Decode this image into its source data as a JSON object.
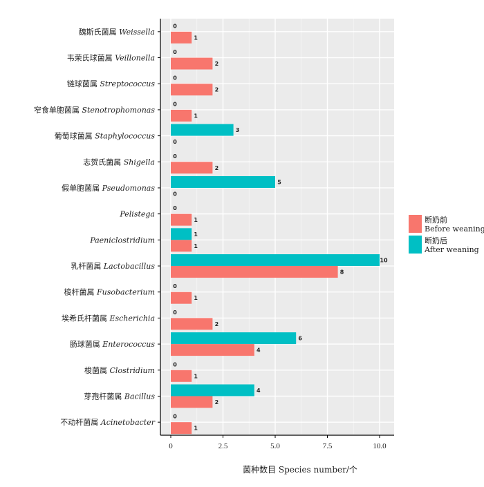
{
  "chart_data": {
    "type": "bar",
    "orientation": "horizontal",
    "xlabel": "菌种数目 Species number/个",
    "ylabel": "",
    "xlim": [
      0,
      10.5
    ],
    "x_ticks": [
      "0",
      "2.5",
      "5.0",
      "7.5",
      "10.0"
    ],
    "grid": true,
    "legend_position": "right",
    "categories": [
      {
        "cn": "魏斯氏菌属",
        "latin": "Weissella"
      },
      {
        "cn": "韦荣氏球菌属",
        "latin": "Veillonella"
      },
      {
        "cn": "链球菌属",
        "latin": "Streptococcus"
      },
      {
        "cn": "窄食单胞菌属",
        "latin": "Stenotrophomonas"
      },
      {
        "cn": "葡萄球菌属",
        "latin": "Staphylococcus"
      },
      {
        "cn": "志贺氏菌属",
        "latin": "Shigella"
      },
      {
        "cn": "假单胞菌属",
        "latin": "Pseudomonas"
      },
      {
        "cn": "",
        "latin": "Pelistega"
      },
      {
        "cn": "",
        "latin": "Paeniclostridium"
      },
      {
        "cn": "乳杆菌属",
        "latin": "Lactobacillus"
      },
      {
        "cn": "梭杆菌属",
        "latin": "Fusobacterium"
      },
      {
        "cn": "埃希氏杆菌属",
        "latin": "Escherichia"
      },
      {
        "cn": "肠球菌属",
        "latin": "Enterococcus"
      },
      {
        "cn": "梭菌属",
        "latin": "Clostridium"
      },
      {
        "cn": "芽孢杆菌属",
        "latin": "Bacillus"
      },
      {
        "cn": "不动杆菌属",
        "latin": "Acinetobacter"
      }
    ],
    "series": [
      {
        "name_cn": "断奶前",
        "name_en": "Before weaning",
        "color": "#F8766D",
        "values": [
          1,
          2,
          2,
          1,
          0,
          2,
          0,
          1,
          1,
          8,
          1,
          2,
          4,
          1,
          2,
          1
        ]
      },
      {
        "name_cn": "断奶后",
        "name_en": "After weaning",
        "color": "#00BFC4",
        "values": [
          0,
          0,
          0,
          0,
          3,
          0,
          5,
          0,
          1,
          10,
          0,
          0,
          6,
          0,
          4,
          0
        ]
      }
    ]
  }
}
